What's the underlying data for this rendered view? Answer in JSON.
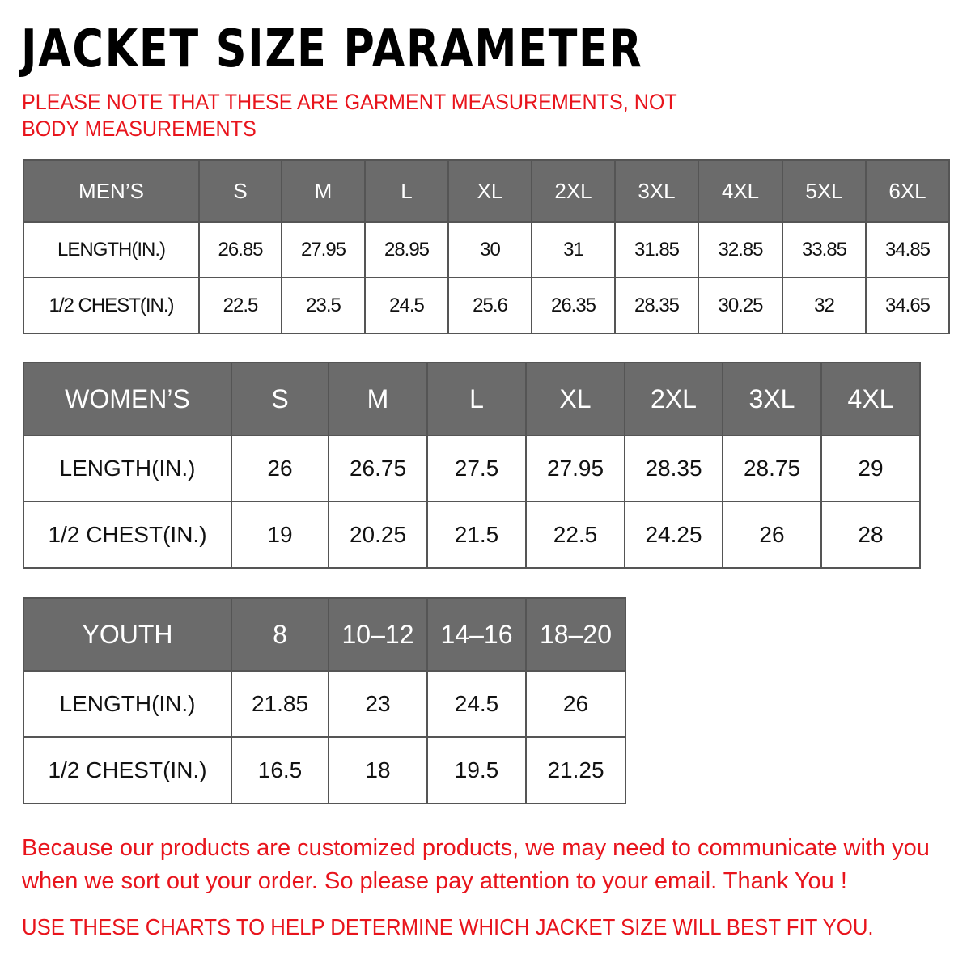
{
  "title": "JACKET SIZE PARAMETER",
  "note": "PLEASE NOTE THAT THESE ARE GARMENT MEASUREMENTS, NOT BODY MEASUREMENTS",
  "colors": {
    "header_bg": "#6b6b6b",
    "accent_red": "#e8141c"
  },
  "tables": {
    "men": {
      "header": [
        "MEN’S",
        "S",
        "M",
        "L",
        "XL",
        "2XL",
        "3XL",
        "4XL",
        "5XL",
        "6XL"
      ],
      "rows": [
        [
          "LENGTH(IN.)",
          "26.85",
          "27.95",
          "28.95",
          "30",
          "31",
          "31.85",
          "32.85",
          "33.85",
          "34.85"
        ],
        [
          "1/2 CHEST(IN.)",
          "22.5",
          "23.5",
          "24.5",
          "25.6",
          "26.35",
          "28.35",
          "30.25",
          "32",
          "34.65"
        ]
      ]
    },
    "women": {
      "header": [
        "WOMEN’S",
        "S",
        "M",
        "L",
        "XL",
        "2XL",
        "3XL",
        "4XL"
      ],
      "rows": [
        [
          "LENGTH(IN.)",
          "26",
          "26.75",
          "27.5",
          "27.95",
          "28.35",
          "28.75",
          "29"
        ],
        [
          "1/2 CHEST(IN.)",
          "19",
          "20.25",
          "21.5",
          "22.5",
          "24.25",
          "26",
          "28"
        ]
      ]
    },
    "youth": {
      "header": [
        "YOUTH",
        "8",
        "10–12",
        "14–16",
        "18–20"
      ],
      "rows": [
        [
          "LENGTH(IN.)",
          "21.85",
          "23",
          "24.5",
          "26"
        ],
        [
          "1/2 CHEST(IN.)",
          "16.5",
          "18",
          "19.5",
          "21.25"
        ]
      ]
    }
  },
  "footer": {
    "message": "Because our products are customized products, we may need to communicate with you when we sort out your order. So please pay attention to your email. Thank You !",
    "instruction": "USE THESE CHARTS TO HELP DETERMINE WHICH JACKET SIZE WILL BEST FIT YOU."
  }
}
